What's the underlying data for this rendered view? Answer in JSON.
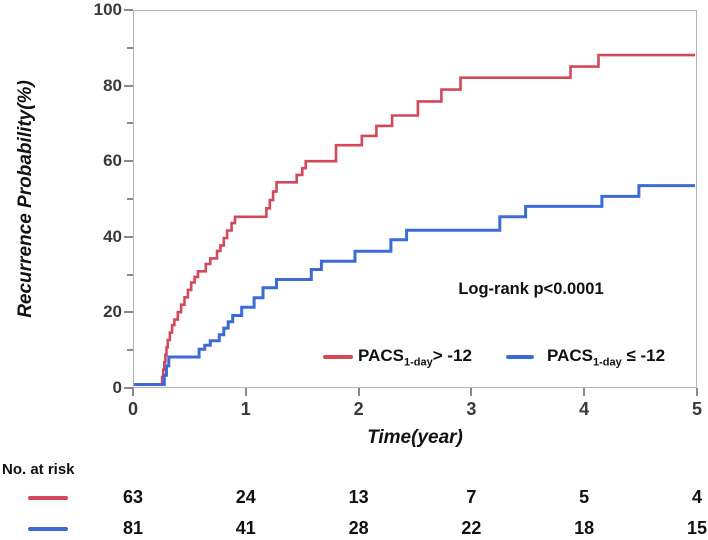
{
  "figure": {
    "kind": "Kaplan-Meier cumulative recurrence plot"
  },
  "colors": {
    "red_series": "#d4495a",
    "blue_series": "#3c6bd8",
    "axis_border": "#b4b4b4",
    "tick": "#8a8a8a"
  },
  "legend_items": [
    {
      "pre": "PACS",
      "sub": "1-day",
      "post": "> -12",
      "color": "#d4495a"
    },
    {
      "pre": "PACS",
      "sub": "1-day",
      "post": " ≤ -12",
      "color": "#3c6bd8"
    }
  ],
  "chart_data": {
    "type": "line",
    "subtype": "step-kaplan-meier",
    "title": "",
    "xlabel": "Time(year)",
    "ylabel": "Recurrence Probability(%)",
    "annotation": "Log-rank p<0.0001",
    "xlim": [
      0,
      5
    ],
    "ylim": [
      0,
      100
    ],
    "x_ticks": [
      0,
      1,
      2,
      3,
      4,
      5
    ],
    "y_ticks": [
      0,
      20,
      40,
      60,
      80,
      100
    ],
    "y_minor_ticks": [
      10,
      30,
      50,
      70,
      90
    ],
    "grid": false,
    "legend_position": "inside-bottom-right",
    "at_risk_label": "No. at risk",
    "series": [
      {
        "name": "PACS 1-day > -12",
        "color": "#d4495a",
        "end_time": 5.0,
        "steps": [
          [
            0.25,
            2
          ],
          [
            0.26,
            4
          ],
          [
            0.27,
            6
          ],
          [
            0.28,
            8
          ],
          [
            0.29,
            10
          ],
          [
            0.3,
            12
          ],
          [
            0.32,
            14
          ],
          [
            0.34,
            16
          ],
          [
            0.36,
            17.5
          ],
          [
            0.39,
            19.5
          ],
          [
            0.42,
            21.5
          ],
          [
            0.45,
            23.5
          ],
          [
            0.48,
            25.5
          ],
          [
            0.51,
            27.5
          ],
          [
            0.54,
            29
          ],
          [
            0.57,
            30.5
          ],
          [
            0.64,
            32.5
          ],
          [
            0.68,
            34
          ],
          [
            0.74,
            36
          ],
          [
            0.77,
            37.5
          ],
          [
            0.8,
            39.5
          ],
          [
            0.83,
            41.5
          ],
          [
            0.87,
            43.5
          ],
          [
            0.9,
            45.2
          ],
          [
            1.18,
            47.5
          ],
          [
            1.21,
            49.7
          ],
          [
            1.24,
            52
          ],
          [
            1.27,
            54.5
          ],
          [
            1.45,
            56.5
          ],
          [
            1.5,
            58.3
          ],
          [
            1.53,
            60.2
          ],
          [
            1.8,
            64.5
          ],
          [
            2.03,
            67
          ],
          [
            2.16,
            69.7
          ],
          [
            2.3,
            72.5
          ],
          [
            2.53,
            76.3
          ],
          [
            2.74,
            79.5
          ],
          [
            2.91,
            82.7
          ],
          [
            3.89,
            85.7
          ],
          [
            4.14,
            88.8
          ]
        ],
        "at_risk": [
          63,
          24,
          13,
          7,
          5,
          4
        ]
      },
      {
        "name": "PACS 1-day ≤ -12",
        "color": "#3c6bd8",
        "end_time": 5.0,
        "steps": [
          [
            0.27,
            2.5
          ],
          [
            0.29,
            5
          ],
          [
            0.31,
            7.4
          ],
          [
            0.58,
            9.5
          ],
          [
            0.63,
            10.6
          ],
          [
            0.68,
            11.8
          ],
          [
            0.76,
            13.4
          ],
          [
            0.8,
            15.2
          ],
          [
            0.84,
            16.9
          ],
          [
            0.88,
            18.6
          ],
          [
            0.96,
            20.8
          ],
          [
            1.07,
            23.4
          ],
          [
            1.15,
            26.1
          ],
          [
            1.27,
            28.3
          ],
          [
            1.58,
            31
          ],
          [
            1.67,
            33.2
          ],
          [
            1.97,
            35.9
          ],
          [
            2.29,
            39
          ],
          [
            2.43,
            41.6
          ],
          [
            3.26,
            45.2
          ],
          [
            3.49,
            48
          ],
          [
            4.17,
            50.7
          ],
          [
            4.5,
            53.6
          ]
        ],
        "at_risk": [
          81,
          41,
          28,
          22,
          18,
          15
        ]
      }
    ]
  }
}
